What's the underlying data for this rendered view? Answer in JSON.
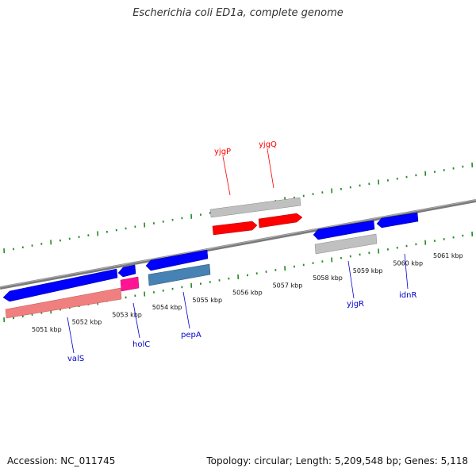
{
  "title": "Escherichia coli ED1a, complete genome",
  "accession": "Accession: NC_011745",
  "topology": "Topology: circular; Length: 5,209,548 bp; Genes: 5,118",
  "colors": {
    "forward_gene": "#ff0000",
    "reverse_gene": "#0000ff",
    "pseudo_track": "#c0c0c0",
    "rna_track": "#f08080",
    "highlight": "#ff1493",
    "selected_cds": "#4682b4",
    "tick": "#228b22",
    "backbone": "#808080"
  },
  "scale_labels": [
    {
      "label": "5051 kbp",
      "kbp": 5051
    },
    {
      "label": "5052 kbp",
      "kbp": 5052
    },
    {
      "label": "5053 kbp",
      "kbp": 5053
    },
    {
      "label": "5054 kbp",
      "kbp": 5054
    },
    {
      "label": "5055 kbp",
      "kbp": 5055
    },
    {
      "label": "5056 kbp",
      "kbp": 5056
    },
    {
      "label": "5057 kbp",
      "kbp": 5057
    },
    {
      "label": "5058 kbp",
      "kbp": 5058
    },
    {
      "label": "5059 kbp",
      "kbp": 5059
    },
    {
      "label": "5060 kbp",
      "kbp": 5060
    },
    {
      "label": "5061 kbp",
      "kbp": 5061
    }
  ],
  "genes": [
    {
      "name": "yjgP",
      "strand": "+"
    },
    {
      "name": "yjgQ",
      "strand": "+"
    },
    {
      "name": "valS",
      "strand": "-"
    },
    {
      "name": "holC",
      "strand": "-"
    },
    {
      "name": "pepA",
      "strand": "-"
    },
    {
      "name": "yjgR",
      "strand": "-"
    },
    {
      "name": "idnR",
      "strand": "-"
    }
  ]
}
